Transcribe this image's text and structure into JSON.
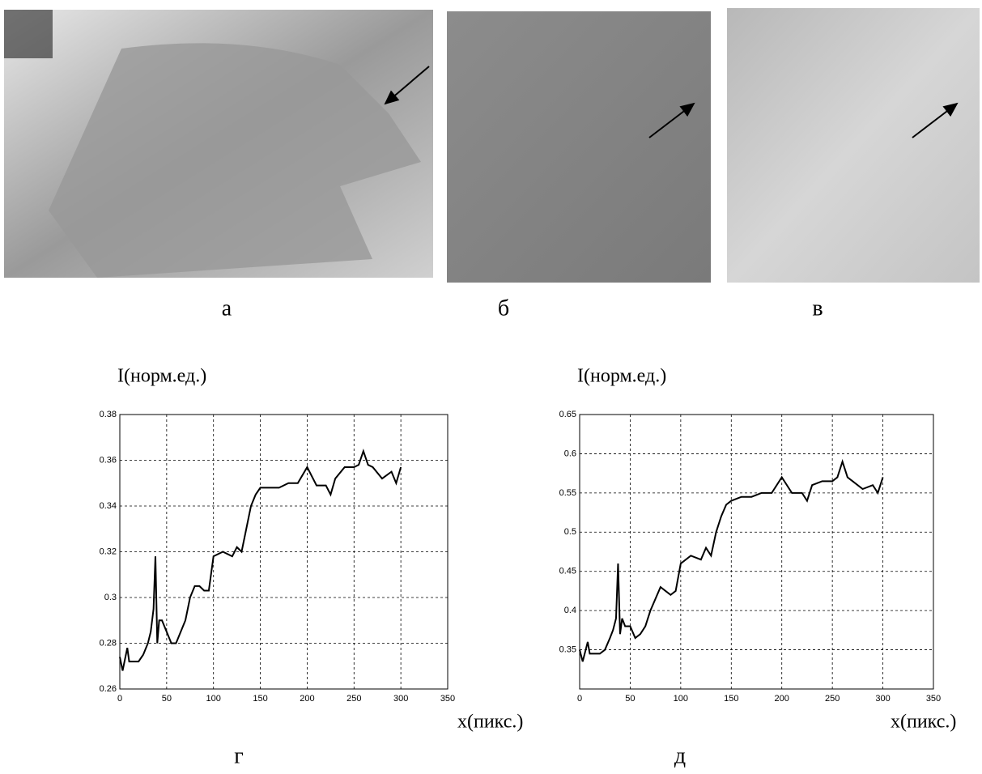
{
  "images": [
    {
      "label": "а"
    },
    {
      "label": "б"
    },
    {
      "label": "в"
    }
  ],
  "chart_data": [
    {
      "type": "line",
      "caption": "г",
      "ylabel": "I(норм.ед.)",
      "xlabel": "x(пикс.)",
      "x": [
        0,
        3,
        5,
        8,
        10,
        15,
        20,
        25,
        30,
        33,
        36,
        38,
        40,
        42,
        45,
        50,
        55,
        60,
        65,
        70,
        75,
        80,
        85,
        90,
        95,
        100,
        110,
        120,
        125,
        130,
        135,
        140,
        145,
        150,
        160,
        170,
        180,
        190,
        200,
        210,
        220,
        225,
        230,
        240,
        250,
        255,
        260,
        265,
        270,
        280,
        290,
        295,
        300
      ],
      "values": [
        0.274,
        0.268,
        0.272,
        0.278,
        0.272,
        0.272,
        0.272,
        0.275,
        0.28,
        0.285,
        0.295,
        0.318,
        0.28,
        0.29,
        0.29,
        0.285,
        0.28,
        0.28,
        0.285,
        0.29,
        0.3,
        0.305,
        0.305,
        0.303,
        0.303,
        0.318,
        0.32,
        0.318,
        0.322,
        0.32,
        0.33,
        0.34,
        0.345,
        0.348,
        0.348,
        0.348,
        0.35,
        0.35,
        0.357,
        0.349,
        0.349,
        0.345,
        0.352,
        0.357,
        0.357,
        0.358,
        0.364,
        0.358,
        0.357,
        0.352,
        0.355,
        0.35,
        0.357
      ],
      "color": "#000000",
      "xlim": [
        0,
        350
      ],
      "ylim": [
        0.26,
        0.38
      ],
      "xticks": [
        0,
        50,
        100,
        150,
        200,
        250,
        300,
        350
      ],
      "yticks": [
        0.26,
        0.28,
        0.3,
        0.32,
        0.34,
        0.36,
        0.38
      ],
      "grid": true
    },
    {
      "type": "line",
      "caption": "д",
      "ylabel": "I(норм.ед.)",
      "xlabel": "x(пикс.)",
      "x": [
        0,
        3,
        5,
        8,
        10,
        15,
        20,
        25,
        30,
        33,
        36,
        38,
        40,
        42,
        45,
        50,
        55,
        60,
        65,
        70,
        75,
        80,
        85,
        90,
        95,
        100,
        110,
        120,
        125,
        130,
        135,
        140,
        145,
        150,
        160,
        170,
        180,
        190,
        200,
        210,
        220,
        225,
        230,
        240,
        250,
        255,
        260,
        265,
        270,
        280,
        290,
        295,
        300
      ],
      "values": [
        0.35,
        0.335,
        0.345,
        0.36,
        0.345,
        0.345,
        0.345,
        0.35,
        0.365,
        0.375,
        0.39,
        0.46,
        0.37,
        0.39,
        0.38,
        0.38,
        0.365,
        0.37,
        0.38,
        0.4,
        0.415,
        0.43,
        0.425,
        0.42,
        0.425,
        0.46,
        0.47,
        0.465,
        0.48,
        0.47,
        0.5,
        0.52,
        0.535,
        0.54,
        0.545,
        0.545,
        0.55,
        0.55,
        0.57,
        0.55,
        0.55,
        0.54,
        0.56,
        0.565,
        0.565,
        0.57,
        0.59,
        0.57,
        0.565,
        0.555,
        0.56,
        0.55,
        0.57
      ],
      "color": "#000000",
      "xlim": [
        0,
        350
      ],
      "ylim": [
        0.3,
        0.65
      ],
      "xticks": [
        0,
        50,
        100,
        150,
        200,
        250,
        300,
        350
      ],
      "yticks": [
        0.35,
        0.4,
        0.45,
        0.5,
        0.55,
        0.6,
        0.65
      ],
      "grid": true
    }
  ]
}
